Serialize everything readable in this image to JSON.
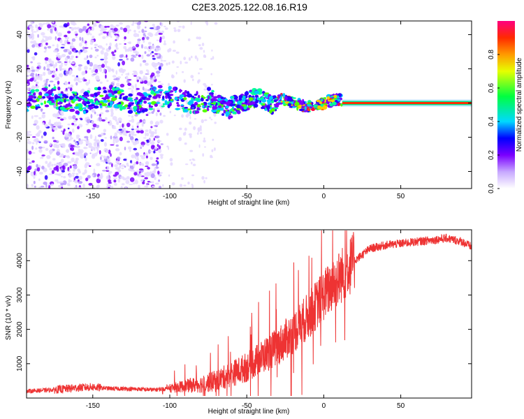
{
  "figure": {
    "title": "C2E3.2025.122.08.16.R19"
  },
  "chart_data": [
    {
      "type": "heatmap",
      "xlabel": "Height of straight line (km)",
      "ylabel": "Frequency (Hz)",
      "xlim": [
        -193,
        96
      ],
      "ylim": [
        -50,
        48
      ],
      "xticks": [
        -150,
        -100,
        -50,
        0,
        50
      ],
      "yticks": [
        -40,
        -20,
        0,
        20,
        40
      ],
      "colorbar": {
        "label": "Normalized spectral amplitude",
        "range": [
          0,
          1
        ],
        "ticks": [
          0.0,
          0.2,
          0.4,
          0.6,
          0.8
        ]
      },
      "features": {
        "noise_region_x": [
          -193,
          -105
        ],
        "sparse_region_x": [
          -105,
          -70
        ],
        "carrier_wander_segments": [
          {
            "x": [
              -193,
              -72
            ],
            "freq_center": 2
          },
          {
            "x": [
              -72,
              -30
            ],
            "freq_center": 0
          },
          {
            "x": [
              -30,
              12
            ],
            "freq_center": 0
          },
          {
            "x": [
              12,
              96
            ],
            "freq_center": 0
          }
        ],
        "steady_carrier_x": [
          12,
          96
        ],
        "steady_carrier_freq": 0
      }
    },
    {
      "type": "line",
      "xlabel": "Height of straight line (km)",
      "ylabel": "SNR (10 * v/v)",
      "xlim": [
        -193,
        96
      ],
      "ylim": [
        0,
        4900
      ],
      "xticks": [
        -150,
        -100,
        -50,
        0,
        50
      ],
      "yticks": [
        1000,
        2000,
        3000,
        4000
      ],
      "color": "#ee3333",
      "series": [
        {
          "x": [
            -193,
            -180,
            -170,
            -160,
            -150,
            -140,
            -130,
            -120,
            -110,
            -100,
            -90,
            -80,
            -70,
            -60,
            -50,
            -40,
            -30,
            -20,
            -10,
            0,
            10,
            20,
            30,
            40,
            50,
            60,
            70,
            80,
            90,
            96
          ],
          "values": [
            200,
            230,
            260,
            300,
            320,
            280,
            270,
            260,
            240,
            280,
            350,
            400,
            500,
            700,
            900,
            1200,
            1500,
            1900,
            2400,
            3000,
            3500,
            4000,
            4350,
            4450,
            4500,
            4550,
            4600,
            4650,
            4550,
            4400
          ]
        }
      ]
    }
  ]
}
